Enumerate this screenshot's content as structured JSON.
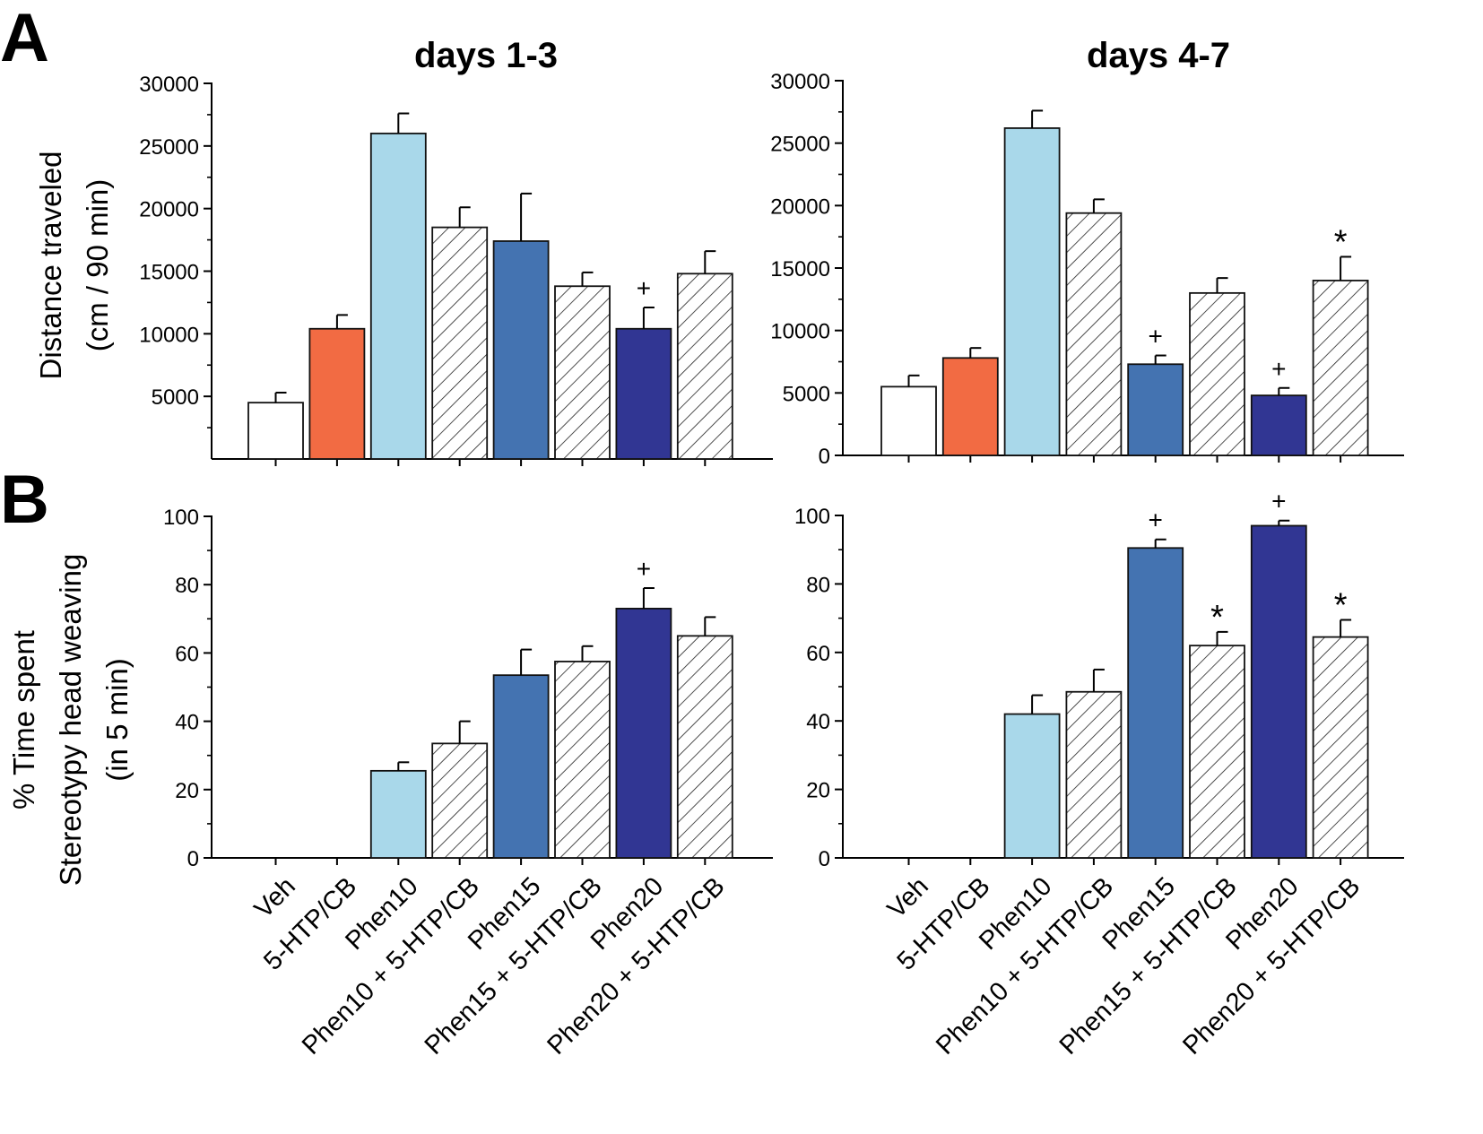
{
  "figure": {
    "panel_labels": [
      "A",
      "B"
    ],
    "column_titles": [
      "days 1-3",
      "days 4-7"
    ],
    "ylabel_A": [
      "Distance traveled",
      "(cm / 90 min)"
    ],
    "ylabel_B": [
      "% Time spent",
      "Stereotypy head weaving",
      "(in 5 min)"
    ]
  },
  "colors": {
    "veh": "#ffffff",
    "htp": "#f26b43",
    "phen10": "#a9d8ea",
    "phen15": "#4473b1",
    "phen20": "#313693",
    "hatch": "#ffffff"
  },
  "chart_data": [
    {
      "id": "A-days1-3",
      "type": "bar",
      "title": "days 1-3",
      "ylabel": "Distance traveled (cm / 90 min)",
      "ylim": [
        0,
        30000
      ],
      "yticks": [
        5000,
        10000,
        15000,
        20000,
        25000,
        30000
      ],
      "categories": [
        "Veh",
        "5-HTP/CB",
        "Phen10",
        "Phen10 + 5-HTP/CB",
        "Phen15",
        "Phen15 + 5-HTP/CB",
        "Phen20",
        "Phen20 + 5-HTP/CB"
      ],
      "values": [
        4500,
        10400,
        26000,
        18500,
        17400,
        13800,
        10400,
        14800
      ],
      "errors": [
        800,
        1100,
        1600,
        1600,
        3800,
        1100,
        1700,
        1800
      ],
      "styles": [
        "veh",
        "htp",
        "phen10",
        "hatch",
        "phen15",
        "hatch",
        "phen20",
        "hatch"
      ],
      "annotations": [
        "",
        "",
        "",
        "",
        "",
        "",
        "+",
        ""
      ]
    },
    {
      "id": "A-days4-7",
      "type": "bar",
      "title": "days 4-7",
      "ylabel": "Distance traveled (cm / 90 min)",
      "ylim": [
        0,
        30000
      ],
      "yticks": [
        0,
        5000,
        10000,
        15000,
        20000,
        25000,
        30000
      ],
      "categories": [
        "Veh",
        "5-HTP/CB",
        "Phen10",
        "Phen10 + 5-HTP/CB",
        "Phen15",
        "Phen15 + 5-HTP/CB",
        "Phen20",
        "Phen20 + 5-HTP/CB"
      ],
      "values": [
        5500,
        7800,
        26200,
        19400,
        7300,
        13000,
        4800,
        14000
      ],
      "errors": [
        900,
        800,
        1400,
        1100,
        700,
        1200,
        600,
        1900
      ],
      "styles": [
        "veh",
        "htp",
        "phen10",
        "hatch",
        "phen15",
        "hatch",
        "phen20",
        "hatch"
      ],
      "annotations": [
        "",
        "",
        "",
        "",
        "+",
        "",
        "+",
        "*"
      ]
    },
    {
      "id": "B-days1-3",
      "type": "bar",
      "title": "",
      "ylabel": "% Time spent Stereotypy head weaving (in 5 min)",
      "ylim": [
        0,
        100
      ],
      "yticks": [
        0,
        20,
        40,
        60,
        80,
        100
      ],
      "categories": [
        "Veh",
        "5-HTP/CB",
        "Phen10",
        "Phen10 + 5-HTP/CB",
        "Phen15",
        "Phen15 + 5-HTP/CB",
        "Phen20",
        "Phen20 + 5-HTP/CB"
      ],
      "values": [
        0,
        0,
        25.5,
        33.5,
        53.5,
        57.5,
        73,
        65
      ],
      "errors": [
        0,
        0,
        2.5,
        6.5,
        7.5,
        4.5,
        6,
        5.5
      ],
      "styles": [
        "veh",
        "htp",
        "phen10",
        "hatch",
        "phen15",
        "hatch",
        "phen20",
        "hatch"
      ],
      "annotations": [
        "",
        "",
        "",
        "",
        "",
        "",
        "+",
        ""
      ]
    },
    {
      "id": "B-days4-7",
      "type": "bar",
      "title": "",
      "ylabel": "% Time spent Stereotypy head weaving (in 5 min)",
      "ylim": [
        0,
        100
      ],
      "yticks": [
        0,
        20,
        40,
        60,
        80,
        100
      ],
      "categories": [
        "Veh",
        "5-HTP/CB",
        "Phen10",
        "Phen10 + 5-HTP/CB",
        "Phen15",
        "Phen15 + 5-HTP/CB",
        "Phen20",
        "Phen20 + 5-HTP/CB"
      ],
      "values": [
        0,
        0,
        42,
        48.5,
        90.5,
        62,
        97,
        64.5
      ],
      "errors": [
        0,
        0,
        5.5,
        6.5,
        2.5,
        4,
        1.5,
        5
      ],
      "styles": [
        "veh",
        "htp",
        "phen10",
        "hatch",
        "phen15",
        "hatch",
        "phen20",
        "hatch"
      ],
      "annotations": [
        "",
        "",
        "",
        "",
        "+",
        "*",
        "+",
        "*"
      ]
    }
  ]
}
